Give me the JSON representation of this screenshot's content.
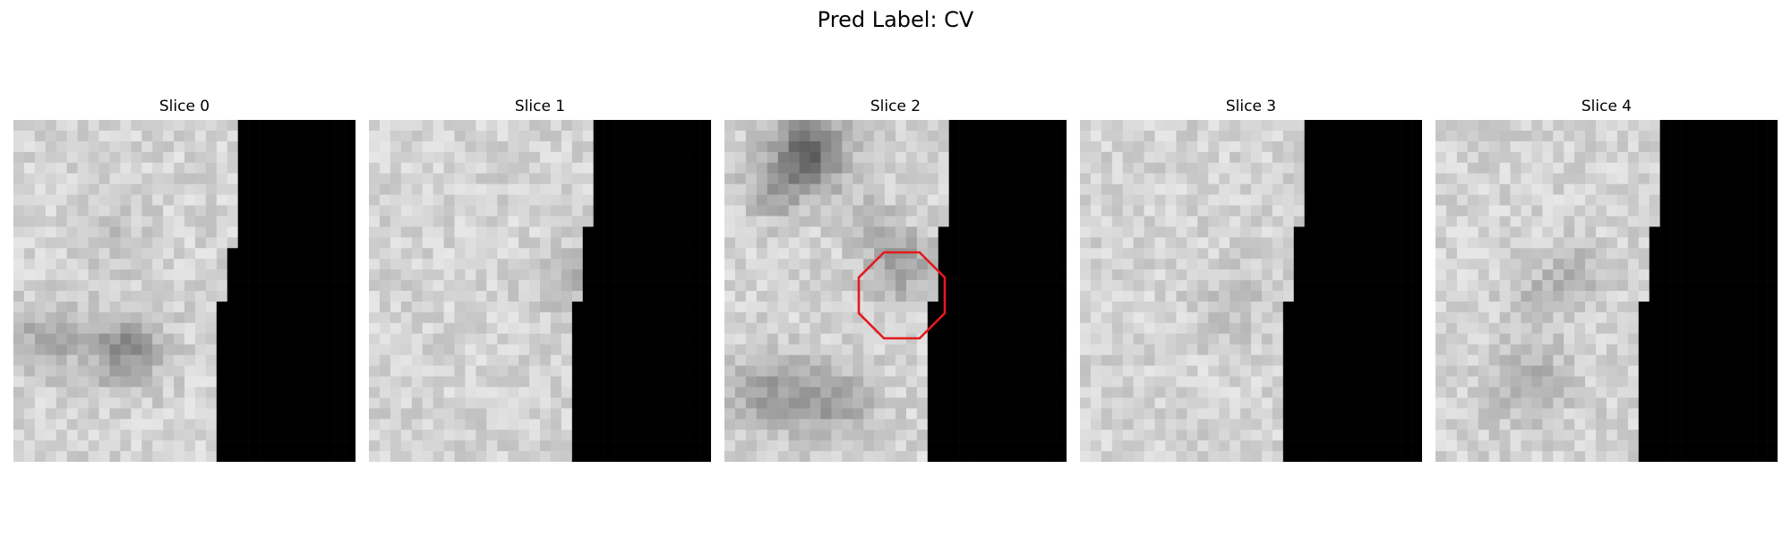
{
  "figure": {
    "title": "Pred Label: CV"
  },
  "slices": [
    {
      "label": "Slice 0",
      "has_annotation": false
    },
    {
      "label": "Slice 1",
      "has_annotation": false
    },
    {
      "label": "Slice 2",
      "has_annotation": true
    },
    {
      "label": "Slice 3",
      "has_annotation": false
    },
    {
      "label": "Slice 4",
      "has_annotation": false
    }
  ],
  "annotation": {
    "shape": "octagon",
    "color": "#e31a1c"
  },
  "colors": {
    "mask": "#000000",
    "background": "#ffffff"
  }
}
